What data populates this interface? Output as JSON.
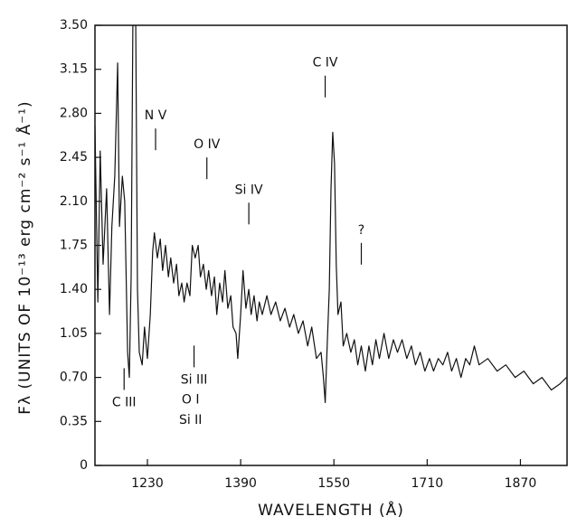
{
  "chart_data": {
    "type": "line",
    "x_label": "WAVELENGTH (Å)",
    "y_label": "Fλ (UNITS OF 10⁻¹³ erg cm⁻² s⁻¹ Å⁻¹)",
    "xlim": [
      1140,
      1950
    ],
    "ylim": [
      0,
      3.5
    ],
    "xticks": [
      1230,
      1390,
      1550,
      1710,
      1870
    ],
    "yticks": [
      0,
      0.35,
      {
        "value": 0.7,
        "label": "0.70"
      },
      1.05,
      {
        "value": 1.4,
        "label": "1.40"
      },
      1.75,
      {
        "value": 2.1,
        "label": "2.10"
      },
      2.45,
      {
        "value": 2.8,
        "label": "2.80"
      },
      3.15,
      {
        "value": 3.5,
        "label": "3.50"
      }
    ],
    "grid": false,
    "series": [
      {
        "color": "#111111",
        "x": [
          1140,
          1145,
          1149,
          1154,
          1160,
          1165,
          1169,
          1174,
          1179,
          1182,
          1187,
          1191,
          1196,
          1199,
          1202,
          1205,
          1210,
          1213,
          1216,
          1221,
          1225,
          1230,
          1235,
          1239,
          1242,
          1247,
          1252,
          1256,
          1261,
          1266,
          1270,
          1275,
          1280,
          1284,
          1289,
          1293,
          1298,
          1303,
          1307,
          1312,
          1317,
          1321,
          1326,
          1331,
          1335,
          1340,
          1345,
          1349,
          1354,
          1359,
          1363,
          1368,
          1373,
          1377,
          1382,
          1385,
          1390,
          1394,
          1399,
          1404,
          1408,
          1413,
          1418,
          1422,
          1427,
          1435,
          1442,
          1450,
          1458,
          1466,
          1474,
          1481,
          1489,
          1497,
          1505,
          1512,
          1520,
          1528,
          1532,
          1535,
          1538,
          1542,
          1545,
          1548,
          1551,
          1554,
          1557,
          1562,
          1566,
          1572,
          1579,
          1585,
          1591,
          1597,
          1604,
          1610,
          1616,
          1622,
          1628,
          1636,
          1644,
          1652,
          1659,
          1667,
          1675,
          1683,
          1690,
          1698,
          1706,
          1714,
          1721,
          1729,
          1737,
          1745,
          1752,
          1760,
          1768,
          1776,
          1783,
          1791,
          1799,
          1814,
          1830,
          1845,
          1861,
          1876,
          1892,
          1907,
          1923,
          1938,
          1949
        ],
        "values": [
          2.7,
          1.3,
          2.5,
          1.6,
          2.2,
          1.2,
          1.9,
          2.3,
          3.2,
          1.9,
          2.3,
          2.1,
          0.9,
          0.7,
          1.5,
          3.5,
          3.5,
          1.4,
          0.9,
          0.8,
          1.1,
          0.85,
          1.2,
          1.7,
          1.85,
          1.65,
          1.8,
          1.55,
          1.75,
          1.5,
          1.65,
          1.45,
          1.6,
          1.35,
          1.45,
          1.3,
          1.45,
          1.35,
          1.75,
          1.65,
          1.75,
          1.5,
          1.6,
          1.4,
          1.55,
          1.35,
          1.5,
          1.2,
          1.45,
          1.3,
          1.55,
          1.25,
          1.35,
          1.1,
          1.05,
          0.85,
          1.2,
          1.55,
          1.25,
          1.4,
          1.2,
          1.35,
          1.15,
          1.3,
          1.2,
          1.35,
          1.2,
          1.3,
          1.15,
          1.25,
          1.1,
          1.2,
          1.05,
          1.15,
          0.95,
          1.1,
          0.85,
          0.9,
          0.7,
          0.5,
          0.9,
          1.4,
          2.2,
          2.65,
          2.4,
          1.6,
          1.2,
          1.3,
          0.95,
          1.05,
          0.9,
          1.0,
          0.8,
          0.95,
          0.75,
          0.95,
          0.8,
          1.0,
          0.85,
          1.05,
          0.85,
          1.0,
          0.9,
          1.0,
          0.85,
          0.95,
          0.8,
          0.9,
          0.75,
          0.85,
          0.75,
          0.85,
          0.8,
          0.9,
          0.75,
          0.85,
          0.7,
          0.85,
          0.8,
          0.95,
          0.8,
          0.85,
          0.75,
          0.8,
          0.7,
          0.75,
          0.65,
          0.7,
          0.6,
          0.65,
          0.7
        ]
      }
    ],
    "annotations": [
      {
        "text": "C III",
        "x": 1190,
        "y": 0.5,
        "tick": "above"
      },
      {
        "text": "N V",
        "x": 1244,
        "y": 2.78,
        "tick": "below"
      },
      {
        "text": "O IV",
        "x": 1332,
        "y": 2.55,
        "tick": "below"
      },
      {
        "text": "Si IV",
        "x": 1404,
        "y": 2.19,
        "tick": "below"
      },
      {
        "text": "C IV",
        "x": 1535,
        "y": 3.2,
        "tick": "below"
      },
      {
        "text": "?",
        "x": 1597,
        "y": 1.87,
        "tick": "below"
      },
      {
        "text": "Si III",
        "x": 1310,
        "y": 0.68,
        "tick": "above"
      },
      {
        "text": "O I",
        "x": 1304,
        "y": 0.52,
        "tick": "none"
      },
      {
        "text": "Si II",
        "x": 1304,
        "y": 0.36,
        "tick": "none"
      }
    ]
  }
}
